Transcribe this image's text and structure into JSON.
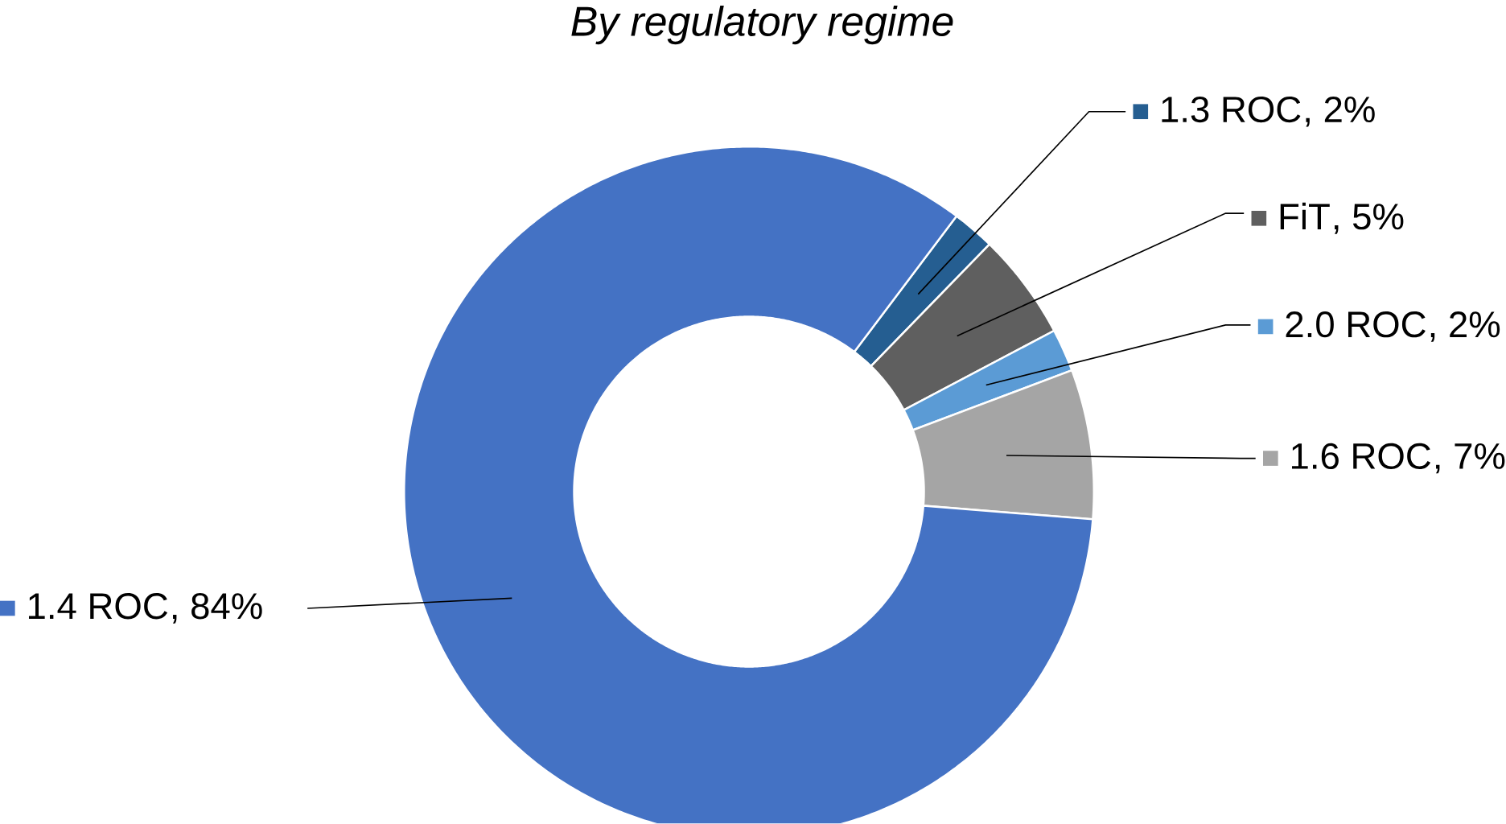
{
  "chart_data": {
    "type": "donut",
    "title": "By regulatory regime",
    "categories": [
      "1.3 ROC",
      "FiT",
      "2.0 ROC",
      "1.6 ROC",
      "1.4 ROC"
    ],
    "values": [
      2,
      5,
      2,
      7,
      84
    ],
    "colors": [
      "#255e91",
      "#5f5f5f",
      "#5b9bd5",
      "#a5a5a5",
      "#4472c4"
    ],
    "legend": "right",
    "value_labels": [
      ", 2%",
      ", 5%",
      ", 2%",
      ", 7%",
      ", 84%"
    ]
  }
}
